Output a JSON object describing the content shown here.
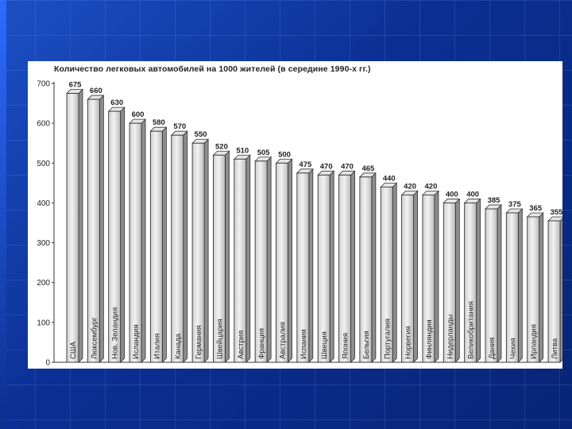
{
  "chart_data": {
    "type": "bar",
    "title": "Количество легковых автомобилей на 1000 жителей (в середине 1990-х гг.)",
    "xlabel": "",
    "ylabel": "",
    "ylim": [
      0,
      700
    ],
    "yticks": [
      0,
      100,
      200,
      300,
      400,
      500,
      600,
      700
    ],
    "grid": false,
    "categories": [
      "США",
      "Люксембург",
      "Нов. Зеландия",
      "Исландия",
      "Италия",
      "Канада",
      "Германия",
      "Швейцария",
      "Австрия",
      "Франция",
      "Австралия",
      "Испания",
      "Швеция",
      "Япония",
      "Бельгия",
      "Португалия",
      "Норвегия",
      "Финляндия",
      "Нидерланды",
      "Великобритания",
      "Дания",
      "Чехия",
      "Ирландия",
      "Литва"
    ],
    "values": [
      675,
      660,
      630,
      600,
      580,
      570,
      550,
      520,
      510,
      505,
      500,
      475,
      470,
      470,
      465,
      440,
      420,
      420,
      400,
      400,
      385,
      375,
      365,
      355
    ],
    "bar_color": "#d9d9d9"
  }
}
